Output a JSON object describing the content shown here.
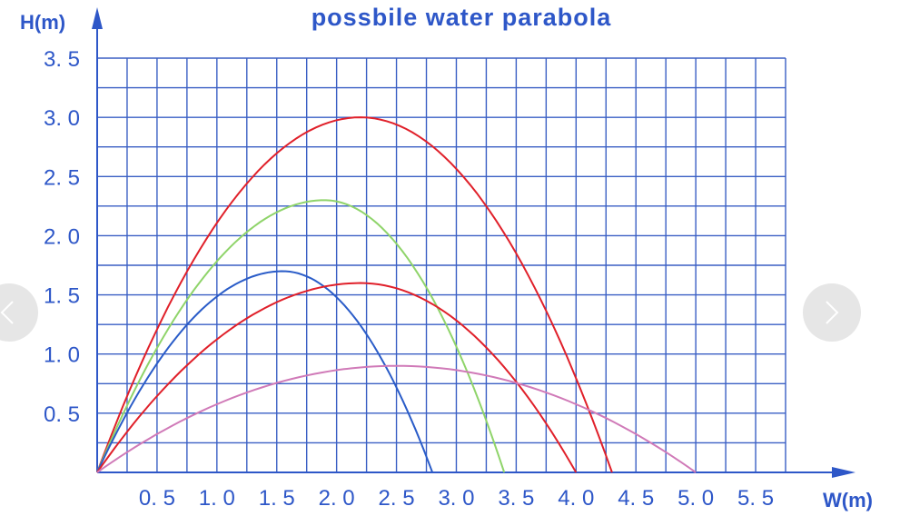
{
  "chart_data": {
    "type": "line",
    "title": "possbile water parabola",
    "xlabel": "W(m)",
    "ylabel": "H(m)",
    "xlim": [
      0,
      5.75
    ],
    "ylim": [
      0,
      3.5
    ],
    "x_ticks": [
      "0. 5",
      "1. 0",
      "1. 5",
      "2. 0",
      "2. 5",
      "3. 0",
      "3. 5",
      "4. 0",
      "4. 5",
      "5. 0",
      "5. 5"
    ],
    "y_ticks": [
      "0. 5",
      "1. 0",
      "1. 5",
      "2. 0",
      "2. 5",
      "3. 0",
      "3. 5"
    ],
    "grid": true,
    "series": [
      {
        "color": "#e0202a",
        "x": [
          0,
          2.2,
          4.3
        ],
        "y": [
          0,
          3.0,
          0
        ]
      },
      {
        "color": "#8fd46a",
        "x": [
          0,
          1.9,
          3.4
        ],
        "y": [
          0,
          2.3,
          0
        ]
      },
      {
        "color": "#2a5cc8",
        "x": [
          0,
          1.55,
          2.8
        ],
        "y": [
          0,
          1.7,
          0
        ]
      },
      {
        "color": "#e0202a",
        "x": [
          0,
          2.2,
          4.0
        ],
        "y": [
          0,
          1.6,
          0
        ]
      },
      {
        "color": "#d07ab8",
        "x": [
          0,
          2.5,
          5.0
        ],
        "y": [
          0,
          0.9,
          0
        ]
      }
    ]
  },
  "colors": {
    "axis": "#2e57c8",
    "grid": "#3a5fc4",
    "text": "#2e57c8"
  },
  "nav": {
    "prev_icon": "chevron-left-icon",
    "next_icon": "chevron-right-icon"
  }
}
